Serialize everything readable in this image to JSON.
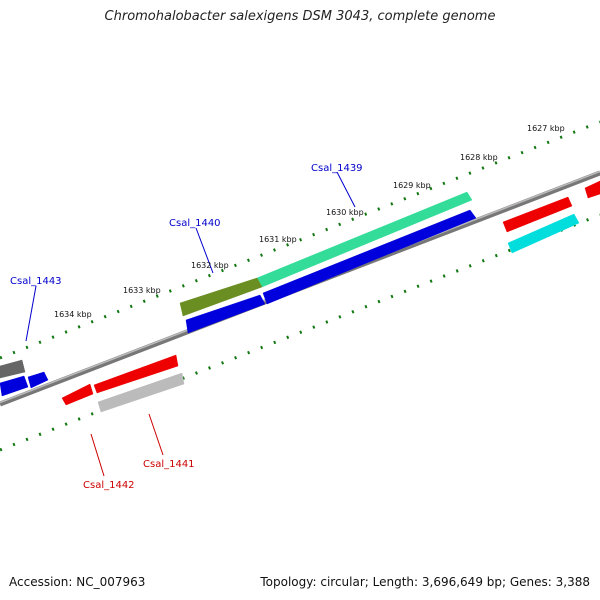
{
  "title": "Chromohalobacter salexigens DSM 3043, complete genome",
  "accession": "Accession: NC_007963",
  "summary": "Topology: circular; Length: 3,696,649 bp; Genes: 3,388",
  "colors": {
    "backbone": "#888888",
    "tick": "#117711",
    "label_forward": "#0000cc",
    "label_reverse": "#cc0000"
  },
  "kbp_ticks": [
    {
      "id": "1627",
      "label": "1627 kbp"
    },
    {
      "id": "1628",
      "label": "1628 kbp"
    },
    {
      "id": "1629",
      "label": "1629 kbp"
    },
    {
      "id": "1630",
      "label": "1630 kbp"
    },
    {
      "id": "1631",
      "label": "1631 kbp"
    },
    {
      "id": "1632",
      "label": "1632 kbp"
    },
    {
      "id": "1633",
      "label": "1633 kbp"
    },
    {
      "id": "1634",
      "label": "1634 kbp"
    }
  ],
  "gene_labels": [
    {
      "id": "csal-1439",
      "label": "Csal_1439",
      "strand": "forward"
    },
    {
      "id": "csal-1440",
      "label": "Csal_1440",
      "strand": "forward"
    },
    {
      "id": "csal-1443",
      "label": "Csal_1443",
      "strand": "forward"
    },
    {
      "id": "csal-1441",
      "label": "Csal_1441",
      "strand": "reverse"
    },
    {
      "id": "csal-1442",
      "label": "Csal_1442",
      "strand": "reverse"
    }
  ],
  "features": [
    {
      "id": "cds-1439",
      "color": "#33dd99"
    },
    {
      "id": "cds-1440",
      "color": "#6b8e23"
    },
    {
      "id": "blue-long",
      "color": "#0000dd"
    },
    {
      "id": "blue-short",
      "color": "#0000dd"
    },
    {
      "id": "red-right",
      "color": "#ee0000"
    },
    {
      "id": "cyan-right",
      "color": "#00dddd"
    },
    {
      "id": "red-topright",
      "color": "#ee0000"
    },
    {
      "id": "red-long",
      "color": "#ee0000"
    },
    {
      "id": "red-small",
      "color": "#ee0000"
    },
    {
      "id": "gray-long",
      "color": "#bbbbbb"
    },
    {
      "id": "gray-left",
      "color": "#666666"
    },
    {
      "id": "blue-left-a",
      "color": "#0000dd"
    },
    {
      "id": "blue-left-b",
      "color": "#0000dd"
    }
  ]
}
